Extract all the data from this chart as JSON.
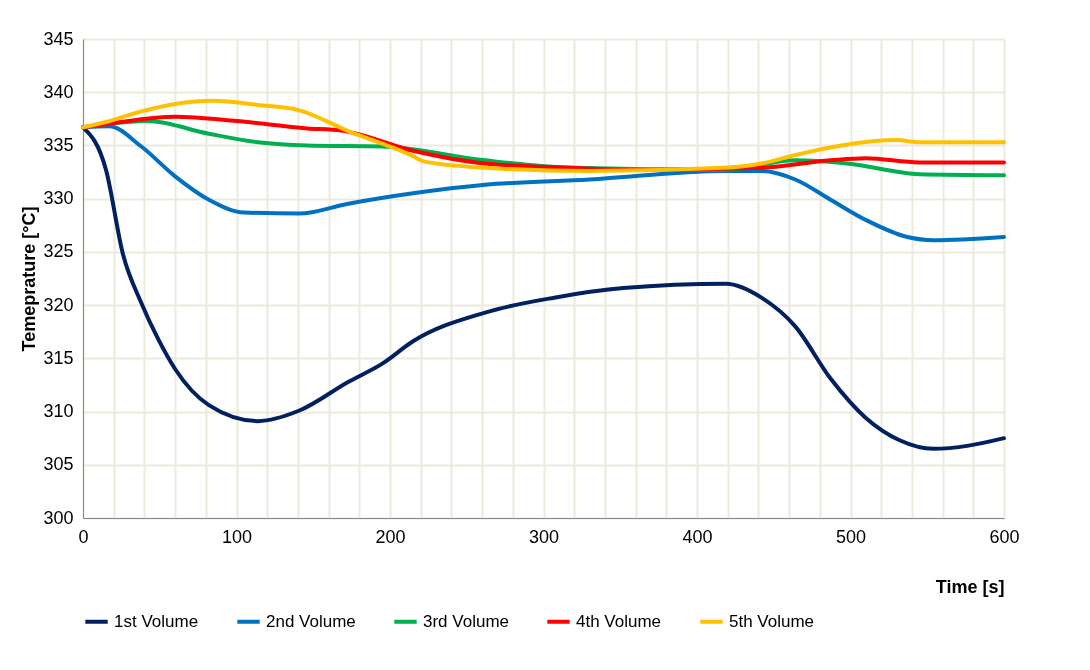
{
  "chart_data": {
    "type": "line",
    "xlabel": "Time [s]",
    "ylabel": "Temeprature [°C]",
    "xlim": [
      0,
      600
    ],
    "ylim": [
      300,
      345
    ],
    "xticks": [
      0,
      {
        "value": 20,
        "label": null
      },
      {
        "value": 40,
        "label": null
      },
      {
        "value": 60,
        "label": null
      },
      {
        "value": 80,
        "label": null
      },
      100,
      {
        "value": 120,
        "label": null
      },
      {
        "value": 140,
        "label": null
      },
      {
        "value": 160,
        "label": null
      },
      {
        "value": 180,
        "label": null
      },
      200,
      {
        "value": 220,
        "label": null
      },
      {
        "value": 240,
        "label": null
      },
      {
        "value": 260,
        "label": null
      },
      {
        "value": 280,
        "label": null
      },
      300,
      {
        "value": 320,
        "label": null
      },
      {
        "value": 340,
        "label": null
      },
      {
        "value": 360,
        "label": null
      },
      {
        "value": 380,
        "label": null
      },
      400,
      {
        "value": 420,
        "label": null
      },
      {
        "value": 440,
        "label": null
      },
      {
        "value": 460,
        "label": null
      },
      {
        "value": 480,
        "label": null
      },
      500,
      {
        "value": 520,
        "label": null
      },
      {
        "value": 540,
        "label": null
      },
      {
        "value": 560,
        "label": null
      },
      {
        "value": 580,
        "label": null
      },
      600
    ],
    "yticks": [
      300,
      305,
      310,
      315,
      320,
      325,
      330,
      335,
      340,
      345
    ],
    "grid": true,
    "legend": "bottom",
    "marker": "none",
    "line_style": "solid",
    "series": [
      {
        "name": "1st Volume",
        "color": "#002060",
        "x": [
          0,
          15,
          26,
          38,
          49,
          60,
          82,
          114,
          141,
          173,
          195,
          215,
          262,
          307,
          352,
          419,
          442,
          464,
          487,
          510,
          532,
          554,
          577,
          600
        ],
        "values": [
          336.7,
          332.7,
          324.8,
          320.2,
          316.8,
          314.0,
          310.6,
          309.1,
          310.1,
          312.8,
          314.5,
          316.6,
          319.3,
          320.7,
          321.6,
          322.0,
          320.7,
          318.0,
          313.1,
          309.4,
          307.3,
          306.5,
          306.8,
          307.5
        ]
      },
      {
        "name": "2nd Volume",
        "color": "#0070c0",
        "x": [
          0,
          17,
          38,
          60,
          82,
          105,
          141,
          172,
          215,
          262,
          330,
          417,
          442,
          464,
          487,
          510,
          537,
          554,
          600
        ],
        "values": [
          336.7,
          336.8,
          334.9,
          332.1,
          329.9,
          328.7,
          328.6,
          329.5,
          330.5,
          331.3,
          331.8,
          332.6,
          332.6,
          331.8,
          329.9,
          328.0,
          326.4,
          326.1,
          326.4
        ]
      },
      {
        "name": "3rd Volume",
        "color": "#00b050",
        "x": [
          0,
          15,
          42,
          82,
          114,
          146,
          195,
          262,
          318,
          417,
          464,
          498,
          545,
          600
        ],
        "values": [
          336.7,
          337.0,
          337.3,
          336.1,
          335.3,
          335.0,
          334.9,
          333.6,
          332.9,
          332.7,
          333.6,
          333.3,
          332.3,
          332.2
        ]
      },
      {
        "name": "4th Volume",
        "color": "#ff0000",
        "x": [
          0,
          15,
          60,
          100,
          146,
          168,
          215,
          262,
          318,
          363,
          442,
          487,
          510,
          545,
          600
        ],
        "values": [
          336.7,
          337.0,
          337.7,
          337.3,
          336.6,
          336.4,
          334.5,
          333.3,
          332.9,
          332.7,
          332.9,
          333.6,
          333.8,
          333.4,
          333.4
        ]
      },
      {
        "name": "5th Volume",
        "color": "#ffc000",
        "x": [
          0,
          15,
          38,
          60,
          85,
          114,
          141,
          172,
          215,
          222,
          262,
          330,
          417,
          442,
          464,
          494,
          530,
          545,
          600
        ],
        "values": [
          336.7,
          337.2,
          338.2,
          338.9,
          339.2,
          338.8,
          338.3,
          336.4,
          334.0,
          333.5,
          332.9,
          332.6,
          332.9,
          333.3,
          334.1,
          335.0,
          335.5,
          335.3,
          335.3
        ]
      }
    ]
  }
}
